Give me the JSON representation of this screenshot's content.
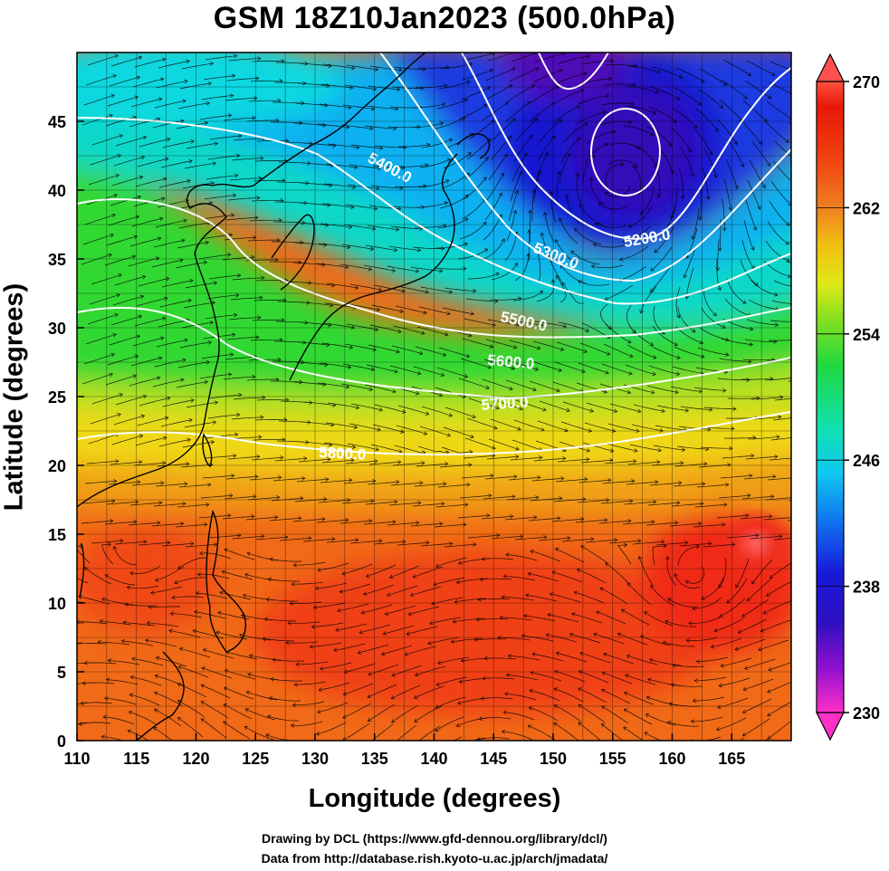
{
  "title": "GSM 18Z10Jan2023 (500.0hPa)",
  "xlabel": "Longitude (degrees)",
  "ylabel": "Latitude  (degrees)",
  "credit_line1": "Drawing by DCL (https://www.gfd-dennou.org/library/dcl/)",
  "credit_line2": "Data from http://database.rish.kyoto-u.ac.jp/arch/jmadata/",
  "x_ticks": [
    "110",
    "115",
    "120",
    "125",
    "130",
    "135",
    "140",
    "145",
    "150",
    "155",
    "160",
    "165"
  ],
  "y_ticks": [
    "0",
    "5",
    "10",
    "15",
    "20",
    "25",
    "30",
    "35",
    "40",
    "45"
  ],
  "colorbar_ticks": [
    "270",
    "262",
    "254",
    "246",
    "238",
    "230"
  ],
  "contour_labels": [
    "5200.0",
    "5300.0",
    "5400.0",
    "5500.0",
    "5600.0",
    "5700.0",
    "5800.0"
  ],
  "colors": {
    "cold": "#1a10d8",
    "cyan": "#10d8f0",
    "green": "#30d830",
    "yellow": "#f0e010",
    "orange": "#f06010",
    "red": "#e81808",
    "magenta": "#ff20c0",
    "contour": "#ffffff",
    "streamline": "#000000"
  },
  "chart_data": {
    "type": "heatmap",
    "title": "GSM 18Z10Jan2023 (500.0hPa)",
    "xlabel": "Longitude (degrees)",
    "ylabel": "Latitude  (degrees)",
    "xlim": [
      110,
      170
    ],
    "ylim": [
      0,
      50
    ],
    "color_range": [
      230,
      270
    ],
    "colorbar_ticks": [
      270,
      262,
      254,
      246,
      238,
      230
    ],
    "contour_levels": [
      5200,
      5300,
      5400,
      5500,
      5600,
      5700,
      5800
    ],
    "overlay": "streamlines"
  }
}
